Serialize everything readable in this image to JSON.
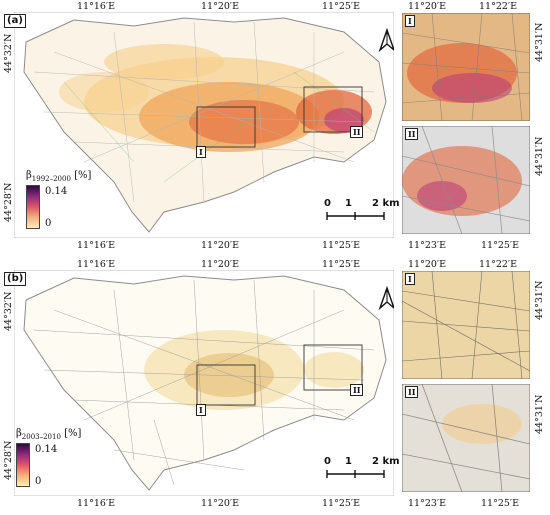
{
  "panels": [
    {
      "id": "a",
      "label": "(a)",
      "top_lon_labels": [
        "11°16′E",
        "11°20′E",
        "11°25′E"
      ],
      "bottom_lon_labels": [
        "11°16′E",
        "11°20′E",
        "11°25′E"
      ],
      "left_lat_labels": [
        "44°32′N",
        "44°28′N"
      ],
      "inset_top_lon_labels": [
        "11°20′E",
        "11°22′E"
      ],
      "inset_bottom_lon_labels": [
        "11°23′E",
        "11°25′E"
      ],
      "inset_lat_labels": [
        "44°31′N",
        "44°31′N"
      ],
      "legend": {
        "symbol": "β",
        "subscript": "1992–2000",
        "unit": "[%]",
        "max": "0.14",
        "min": "0",
        "colors": [
          "#fbeeb6",
          "#f8b07a",
          "#e0566a",
          "#8f2a7f",
          "#2a0b3f"
        ]
      },
      "scale": [
        "0",
        "1",
        "2 km"
      ],
      "insets": [
        "I",
        "II"
      ],
      "palette": {
        "dense": "#e2683e",
        "mid": "#f0a257",
        "light": "#f7cf8b",
        "roads": "#b3b3b3",
        "green": "#6fbf73"
      }
    },
    {
      "id": "b",
      "label": "(b)",
      "top_lon_labels": [
        "11°16′E",
        "11°20′E",
        "11°25′E"
      ],
      "bottom_lon_labels": [
        "11°16′E",
        "11°20′E",
        "11°25′E"
      ],
      "left_lat_labels": [
        "44°32′N",
        "44°28′N"
      ],
      "inset_top_lon_labels": [
        "11°20′E",
        "11°22′E"
      ],
      "inset_bottom_lon_labels": [
        "11°23′E",
        "11°25′E"
      ],
      "inset_lat_labels": [
        "44°31′N",
        "44°31′N"
      ],
      "legend": {
        "symbol": "β",
        "subscript": "2003–2010",
        "unit": "[%]",
        "max": "0.14",
        "min": "0",
        "colors": [
          "#fbeeb6",
          "#f8b07a",
          "#e0566a",
          "#8f2a7f",
          "#2a0b3f"
        ]
      },
      "scale": [
        "0",
        "1",
        "2 km"
      ],
      "insets": [
        "I",
        "II"
      ],
      "palette": {
        "dense": "#d9a24a",
        "mid": "#e8c07a",
        "light": "#f3dfaa",
        "roads": "#9a9a9a",
        "green": "#cccccc"
      }
    }
  ]
}
